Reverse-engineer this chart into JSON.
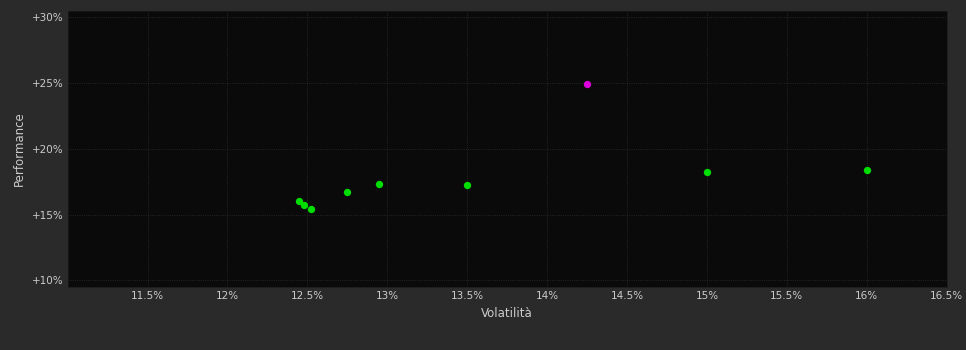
{
  "background_color": "#2a2a2a",
  "plot_bg_color": "#0a0a0a",
  "grid_color": "#2d2d2d",
  "xlabel": "Volatilità",
  "ylabel": "Performance",
  "xlim": [
    0.11,
    0.165
  ],
  "ylim": [
    0.095,
    0.305
  ],
  "xticks": [
    0.115,
    0.12,
    0.125,
    0.13,
    0.135,
    0.14,
    0.145,
    0.15,
    0.155,
    0.16,
    0.165
  ],
  "yticks": [
    0.1,
    0.15,
    0.2,
    0.25,
    0.3
  ],
  "ytick_labels": [
    "+10%",
    "+15%",
    "+20%",
    "+25%",
    "+30%"
  ],
  "xtick_labels": [
    "11.5%",
    "12%",
    "12.5%",
    "13%",
    "13.5%",
    "14%",
    "14.5%",
    "15%",
    "15.5%",
    "16%",
    "16.5%"
  ],
  "green_points": [
    [
      0.1245,
      0.1605
    ],
    [
      0.1248,
      0.157
    ],
    [
      0.1252,
      0.154
    ],
    [
      0.1275,
      0.167
    ],
    [
      0.1295,
      0.173
    ],
    [
      0.135,
      0.1725
    ],
    [
      0.15,
      0.1825
    ],
    [
      0.16,
      0.1835
    ]
  ],
  "magenta_points": [
    [
      0.1425,
      0.249
    ]
  ],
  "green_color": "#00dd00",
  "magenta_color": "#dd00dd",
  "marker_size": 28,
  "tick_color": "#cccccc",
  "label_color": "#cccccc",
  "grid_linestyle": "dotted",
  "grid_linewidth": 0.6
}
